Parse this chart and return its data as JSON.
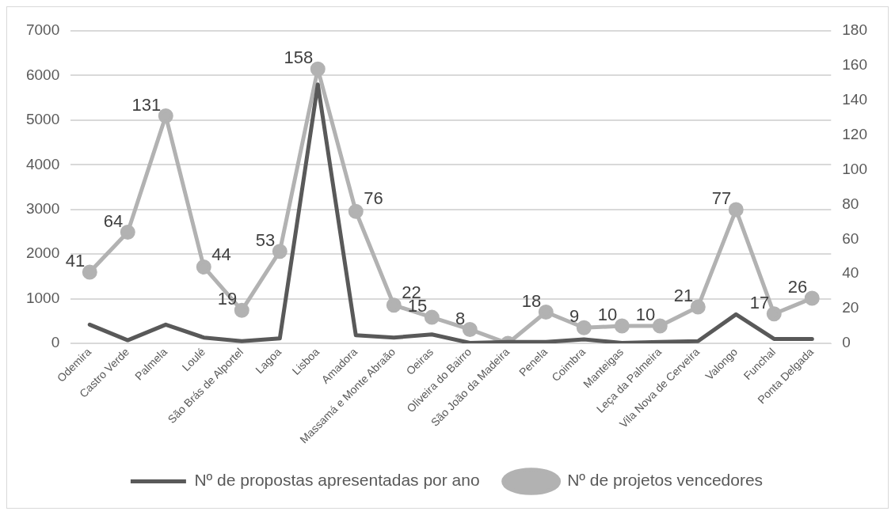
{
  "chart_data": {
    "type": "line",
    "categories": [
      "Odemira",
      "Castro Verde",
      "Palmela",
      "Loulé",
      "São Brás de Alportel",
      "Lagoa",
      "Lisboa",
      "Amadora",
      "Massamá e Monte Abraão",
      "Oeiras",
      "Oliveira do Bairro",
      "São João da Madeira",
      "Penela",
      "Coimbra",
      "Manteigas",
      "Leça da Palmeira",
      "Vila Nova de Cerveira",
      "Valongo",
      "Funchal",
      "Ponta Delgada"
    ],
    "series": [
      {
        "name": "Nº de propostas apresentadas por ano",
        "color": "#595959",
        "values": [
          420,
          70,
          420,
          130,
          50,
          110,
          5800,
          180,
          130,
          200,
          10,
          30,
          30,
          90,
          10,
          30,
          50,
          650,
          100,
          100
        ]
      },
      {
        "name": "Nº de projetos vencedores",
        "color": "#b2b2b2",
        "marker": "circle",
        "axis": "y2",
        "values": [
          41,
          64,
          131,
          44,
          19,
          53,
          158,
          76,
          22,
          15,
          8,
          0,
          18,
          9,
          10,
          10,
          21,
          77,
          17,
          26
        ],
        "value_labels": [
          "41",
          "64",
          "131",
          "44",
          "19",
          "53",
          "158",
          "76",
          "22",
          "15",
          "8",
          null,
          "18",
          "9",
          "10",
          "10",
          "21",
          "77",
          "17",
          "26"
        ]
      }
    ],
    "ylim": [
      0,
      7000
    ],
    "yticks": [
      0,
      1000,
      2000,
      3000,
      4000,
      5000,
      6000,
      7000
    ],
    "y2lim": [
      0,
      180
    ],
    "y2ticks": [
      0,
      20,
      40,
      60,
      80,
      100,
      120,
      140,
      160,
      180
    ],
    "grid": "y",
    "legend": "bottom",
    "line_style": "solid"
  }
}
